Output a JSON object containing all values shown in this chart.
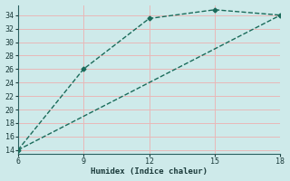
{
  "xlabel": "Humidex (Indice chaleur)",
  "bg_color": "#ceeaea",
  "line_color": "#1a6b5a",
  "grid_color_v": "#e8b8b8",
  "grid_color_h": "#e8b8b8",
  "line1_x": [
    6,
    9,
    12,
    15,
    18
  ],
  "line1_y": [
    14,
    26,
    33.5,
    34.8,
    34.0
  ],
  "line2_x": [
    6,
    9,
    12,
    15,
    18
  ],
  "line2_y": [
    14,
    19,
    24,
    29,
    34.0
  ],
  "xlim": [
    6,
    18
  ],
  "ylim": [
    13.5,
    35.5
  ],
  "xticks": [
    6,
    9,
    12,
    15,
    18
  ],
  "yticks": [
    14,
    16,
    18,
    20,
    22,
    24,
    26,
    28,
    30,
    32,
    34
  ]
}
